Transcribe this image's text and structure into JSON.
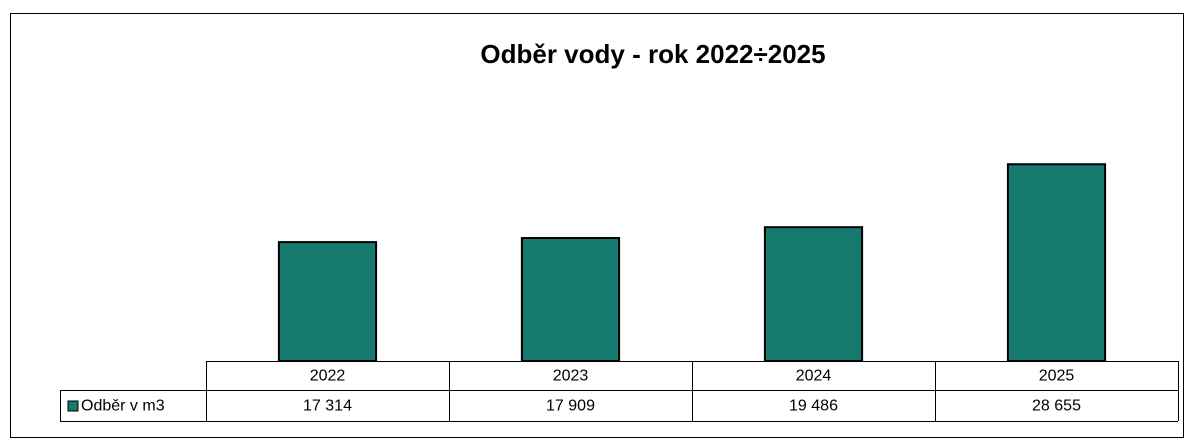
{
  "chart_data": {
    "type": "bar",
    "title": "Odběr vody - rok 2022÷2025",
    "categories": [
      "2022",
      "2023",
      "2024",
      "2025"
    ],
    "series": [
      {
        "name": "Odběr v m3",
        "color": "#167a6e",
        "values": [
          17314,
          17909,
          19486,
          28655
        ],
        "value_labels": [
          "17 314",
          "17 909",
          "19 486",
          "28 655"
        ]
      }
    ],
    "ylim": [
      0,
      30000
    ]
  }
}
